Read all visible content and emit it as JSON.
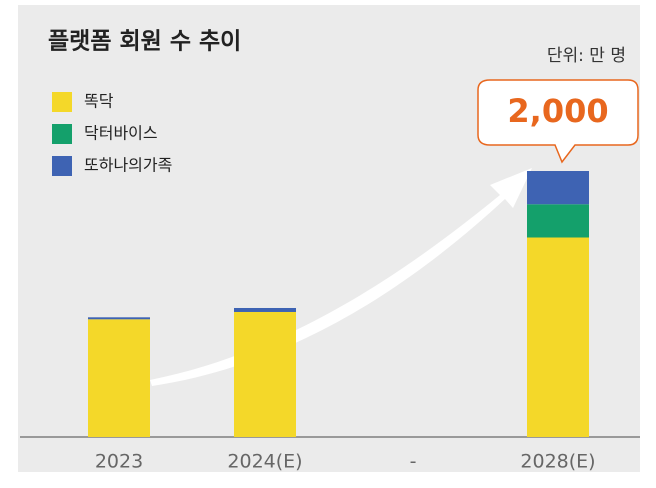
{
  "chart_data": {
    "type": "stacked-bar",
    "title": "플랫폼 회원 수 추이",
    "unit_label": "단위: 만 명",
    "annotation": "2,000",
    "categories": [
      "2023",
      "2024(E)",
      "-",
      "2028(E)"
    ],
    "series": [
      {
        "name": "똑닥",
        "color": "#f4d829",
        "values": [
          885,
          940,
          null,
          1500
        ]
      },
      {
        "name": "닥터바이스",
        "color": "#14a06b",
        "values": [
          0,
          0,
          null,
          250
        ]
      },
      {
        "name": "또하나의가족",
        "color": "#3e63b3",
        "values": [
          15,
          30,
          null,
          250
        ]
      }
    ],
    "legend": "top-left"
  }
}
